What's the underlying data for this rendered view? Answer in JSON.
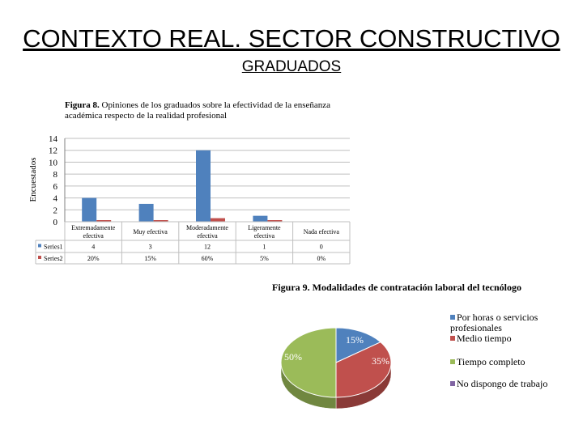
{
  "header": {
    "title": "CONTEXTO REAL. SECTOR CONSTRUCTIVO",
    "subtitle": "GRADUADOS"
  },
  "figure8": {
    "caption_bold": "Figura 8.",
    "caption_text": " Opiniones de los graduados sobre la efectividad de la enseñanza académica respecto de la realidad profesional"
  },
  "figure9": {
    "caption": "Figura 9. Modalidades de contratación laboral del tecnólogo"
  },
  "colors": {
    "series1": "#4f81bd",
    "series2": "#c0504d",
    "green": "#9bbb59",
    "purple": "#8064a2",
    "grid": "#bfbfbf"
  },
  "chart_data": [
    {
      "type": "bar",
      "title": "",
      "ylabel": "Encuestados",
      "xlabel": "",
      "ylim": [
        0,
        14
      ],
      "yticks": [
        "0",
        "2",
        "4",
        "6",
        "8",
        "10",
        "12",
        "14"
      ],
      "categories": [
        "Extremadamente efectiva",
        "Muy efectiva",
        "Moderadamente efectiva",
        "Ligeramente efectiva",
        "Nada efectiva"
      ],
      "series": [
        {
          "name": "Series1",
          "values": [
            4,
            3,
            12,
            1,
            0
          ],
          "labels": [
            "4",
            "3",
            "12",
            "1",
            "0"
          ]
        },
        {
          "name": "Series2",
          "values": [
            0.2,
            0.15,
            0.6,
            0.05,
            0
          ],
          "labels": [
            "20%",
            "15%",
            "60%",
            "5%",
            "0%"
          ]
        }
      ],
      "grid": true,
      "legend": "data-table"
    },
    {
      "type": "pie",
      "title": "",
      "categories": [
        "Por horas o servicios profesionales",
        "Medio tiempo",
        "Tiempo completo",
        "No dispongo de trabajo"
      ],
      "values": [
        15,
        35,
        50,
        0
      ],
      "labels": [
        "15%",
        "35%",
        "50%",
        ""
      ],
      "legend": "right"
    }
  ]
}
